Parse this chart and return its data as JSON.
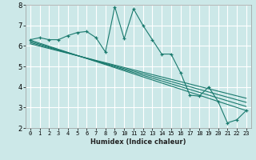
{
  "title": "",
  "xlabel": "Humidex (Indice chaleur)",
  "ylabel": "",
  "bg_color": "#cce8e8",
  "grid_color": "#ffffff",
  "line_color": "#1a7a6e",
  "xlim": [
    -0.5,
    23.5
  ],
  "ylim": [
    2,
    8
  ],
  "xticks": [
    0,
    1,
    2,
    3,
    4,
    5,
    6,
    7,
    8,
    9,
    10,
    11,
    12,
    13,
    14,
    15,
    16,
    17,
    18,
    19,
    20,
    21,
    22,
    23
  ],
  "yticks": [
    2,
    3,
    4,
    5,
    6,
    7,
    8
  ],
  "main_x": [
    0,
    1,
    2,
    3,
    4,
    5,
    6,
    7,
    8,
    9,
    10,
    11,
    12,
    13,
    14,
    15,
    16,
    17,
    18,
    19,
    20,
    21,
    22,
    23
  ],
  "main_y": [
    6.3,
    6.4,
    6.3,
    6.3,
    6.5,
    6.65,
    6.7,
    6.4,
    5.7,
    7.9,
    6.35,
    7.8,
    7.0,
    6.3,
    5.6,
    5.6,
    4.7,
    3.6,
    3.55,
    4.0,
    3.3,
    2.25,
    2.4,
    2.85
  ],
  "reg_lines": [
    {
      "x0": 0,
      "y0": 6.28,
      "x1": 23,
      "y1": 2.85
    },
    {
      "x0": 0,
      "y0": 6.22,
      "x1": 23,
      "y1": 3.05
    },
    {
      "x0": 0,
      "y0": 6.16,
      "x1": 23,
      "y1": 3.25
    },
    {
      "x0": 0,
      "y0": 6.1,
      "x1": 23,
      "y1": 3.45
    }
  ],
  "xlabel_fontsize": 6.0,
  "xlabel_fontweight": "bold",
  "tick_fontsize_x": 5.0,
  "tick_fontsize_y": 6.0
}
